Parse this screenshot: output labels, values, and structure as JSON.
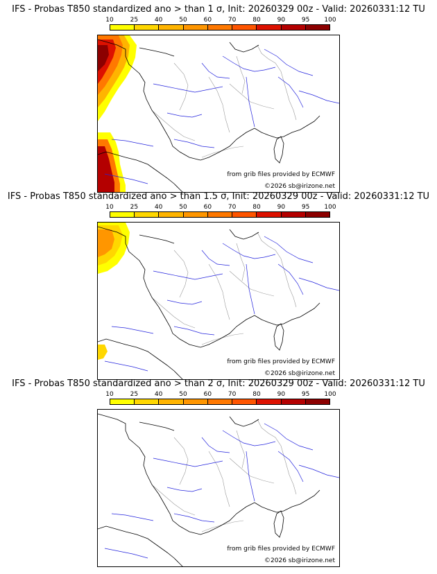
{
  "colorbar": {
    "ticks": [
      "10",
      "25",
      "40",
      "50",
      "60",
      "70",
      "80",
      "90",
      "95",
      "100"
    ],
    "colors": [
      "#ffff00",
      "#ffd700",
      "#ffb400",
      "#ff9600",
      "#ff7800",
      "#ff5500",
      "#dd1100",
      "#b40000",
      "#8c0000"
    ]
  },
  "panels": [
    {
      "title": "IFS - Probas T850  standardized ano > than 1 σ, Init: 20260329 00z - Valid: 20260331:12 TU",
      "credit_source": "from grib files provided by ECMWF",
      "credit_copyright": "©2026 sb@irizone.net"
    },
    {
      "title": "IFS - Probas T850  standardized ano > than 1.5 σ, Init: 20260329 00z - Valid: 20260331:12 TU",
      "credit_source": "from grib files provided by ECMWF",
      "credit_copyright": "©2026 sb@irizone.net"
    },
    {
      "title": "IFS - Probas T850  standardized ano > than 2 σ, Init: 20260329 00z - Valid: 20260331:12 TU",
      "credit_source": "from grib files provided by ECMWF",
      "credit_copyright": "©2026 sb@irizone.net"
    }
  ],
  "colors": {
    "coast": "#000000",
    "rivers": "#2222dd",
    "borders": "#9a9a9a"
  }
}
